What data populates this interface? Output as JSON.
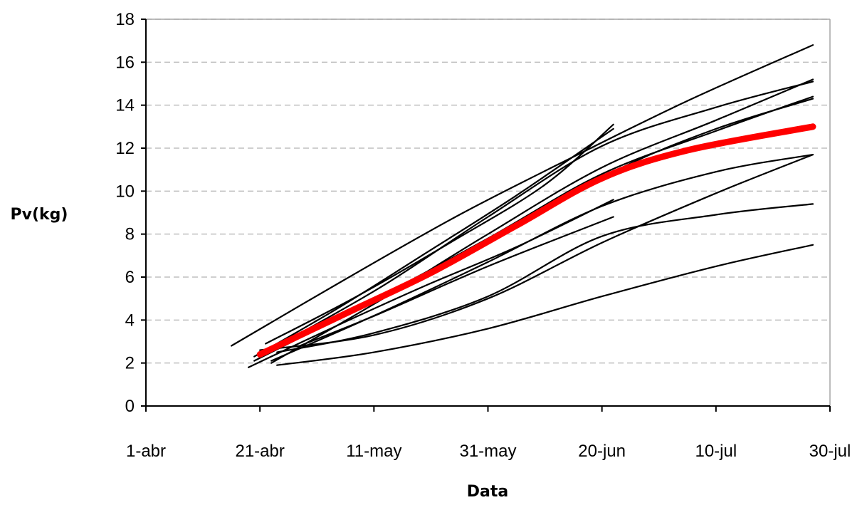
{
  "chart_data": {
    "type": "line",
    "title": "",
    "xlabel": "Data",
    "ylabel": "Pv(kg)",
    "xlim": [
      "2012-04-01",
      "2012-07-30"
    ],
    "ylim": [
      0,
      18
    ],
    "x_tick_labels": [
      "1-abr",
      "21-abr",
      "11-may",
      "31-may",
      "20-jun",
      "10-jul",
      "30-jul"
    ],
    "x_ticks": [
      "2012-04-01",
      "2012-04-21",
      "2012-05-11",
      "2012-05-31",
      "2012-06-20",
      "2012-07-10",
      "2012-07-30"
    ],
    "y_ticks": [
      0,
      2,
      4,
      6,
      8,
      10,
      12,
      14,
      16,
      18
    ],
    "grid": "horizontal dashed",
    "legend": "none",
    "colors": {
      "individual": "#000000",
      "mean": "#ff0000",
      "grid": "#bfbfbf",
      "frame": "#a6a6a6"
    },
    "series": [
      {
        "color": "#000000",
        "points": [
          [
            "2012-04-16",
            2.8
          ],
          [
            "2012-05-06",
            5.9
          ],
          [
            "2012-05-26",
            8.9
          ],
          [
            "2012-06-15",
            11.6
          ],
          [
            "2012-07-05",
            14.2
          ],
          [
            "2012-07-27",
            16.8
          ]
        ]
      },
      {
        "color": "#000000",
        "points": [
          [
            "2012-04-20",
            2.3
          ],
          [
            "2012-05-05",
            4.6
          ],
          [
            "2012-05-20",
            7.1
          ],
          [
            "2012-06-05",
            9.8
          ],
          [
            "2012-06-22",
            12.9
          ]
        ]
      },
      {
        "color": "#000000",
        "points": [
          [
            "2012-04-22",
            2.9
          ],
          [
            "2012-05-08",
            5.1
          ],
          [
            "2012-05-25",
            7.7
          ],
          [
            "2012-06-10",
            10.3
          ],
          [
            "2012-06-22",
            13.1
          ]
        ]
      },
      {
        "color": "#000000",
        "points": [
          [
            "2012-04-22",
            2.5
          ],
          [
            "2012-05-12",
            5.5
          ],
          [
            "2012-05-31",
            8.8
          ],
          [
            "2012-06-20",
            12.1
          ],
          [
            "2012-07-10",
            13.9
          ],
          [
            "2012-07-27",
            15.1
          ]
        ]
      },
      {
        "color": "#000000",
        "points": [
          [
            "2012-04-23",
            2.0
          ],
          [
            "2012-05-12",
            4.9
          ],
          [
            "2012-05-31",
            8.0
          ],
          [
            "2012-06-20",
            11.1
          ],
          [
            "2012-07-10",
            13.3
          ],
          [
            "2012-07-27",
            15.2
          ]
        ]
      },
      {
        "color": "#000000",
        "points": [
          [
            "2012-04-20",
            2.1
          ],
          [
            "2012-05-10",
            4.8
          ],
          [
            "2012-05-31",
            7.8
          ],
          [
            "2012-06-20",
            10.8
          ],
          [
            "2012-07-10",
            12.8
          ],
          [
            "2012-07-27",
            14.4
          ]
        ]
      },
      {
        "color": "#000000",
        "points": [
          [
            "2012-04-21",
            2.4
          ],
          [
            "2012-05-11",
            5.0
          ],
          [
            "2012-05-31",
            7.6
          ],
          [
            "2012-06-22",
            10.9
          ],
          [
            "2012-07-10",
            12.9
          ],
          [
            "2012-07-27",
            14.3
          ]
        ]
      },
      {
        "color": "#000000",
        "points": [
          [
            "2012-04-19",
            1.8
          ],
          [
            "2012-05-05",
            3.8
          ],
          [
            "2012-05-20",
            5.6
          ],
          [
            "2012-06-05",
            7.4
          ],
          [
            "2012-06-22",
            9.6
          ]
        ]
      },
      {
        "color": "#000000",
        "points": [
          [
            "2012-04-23",
            2.1
          ],
          [
            "2012-05-11",
            4.2
          ],
          [
            "2012-05-31",
            6.7
          ],
          [
            "2012-06-20",
            9.3
          ],
          [
            "2012-07-10",
            10.9
          ],
          [
            "2012-07-27",
            11.7
          ]
        ]
      },
      {
        "color": "#000000",
        "points": [
          [
            "2012-04-24",
            2.5
          ],
          [
            "2012-05-11",
            3.4
          ],
          [
            "2012-05-31",
            5.1
          ],
          [
            "2012-06-20",
            7.9
          ],
          [
            "2012-07-10",
            8.9
          ],
          [
            "2012-07-27",
            9.4
          ]
        ]
      },
      {
        "color": "#000000",
        "points": [
          [
            "2012-04-28",
            2.8
          ],
          [
            "2012-05-12",
            4.3
          ],
          [
            "2012-05-31",
            6.5
          ],
          [
            "2012-06-22",
            8.8
          ]
        ]
      },
      {
        "color": "#000000",
        "points": [
          [
            "2012-04-21",
            2.6
          ],
          [
            "2012-05-11",
            3.3
          ],
          [
            "2012-05-31",
            5.0
          ],
          [
            "2012-06-20",
            7.6
          ],
          [
            "2012-07-10",
            9.9
          ],
          [
            "2012-07-27",
            11.7
          ]
        ]
      },
      {
        "color": "#000000",
        "points": [
          [
            "2012-04-24",
            1.9
          ],
          [
            "2012-05-11",
            2.5
          ],
          [
            "2012-05-31",
            3.6
          ],
          [
            "2012-06-20",
            5.1
          ],
          [
            "2012-07-10",
            6.5
          ],
          [
            "2012-07-27",
            7.5
          ]
        ]
      },
      {
        "color": "#ff0000",
        "emphasis": true,
        "points": [
          [
            "2012-04-21",
            2.4
          ],
          [
            "2012-05-06",
            4.3
          ],
          [
            "2012-05-21",
            6.2
          ],
          [
            "2012-06-05",
            8.4
          ],
          [
            "2012-06-20",
            10.6
          ],
          [
            "2012-07-05",
            11.9
          ],
          [
            "2012-07-27",
            13.0
          ]
        ]
      }
    ]
  }
}
